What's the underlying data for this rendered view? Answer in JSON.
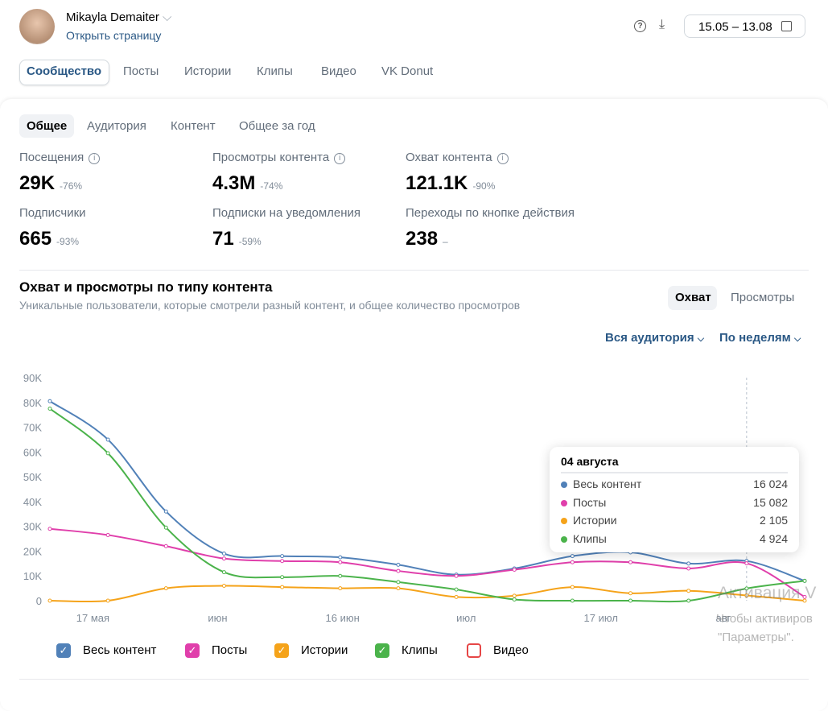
{
  "header": {
    "name": "Mikayla Demaiter",
    "link": "Открыть страницу",
    "date_range": "15.05 – 13.08"
  },
  "tabs": [
    "Сообщество",
    "Посты",
    "Истории",
    "Клипы",
    "Видео",
    "VK Donut"
  ],
  "subtabs": [
    "Общее",
    "Аудитория",
    "Контент",
    "Общее за год"
  ],
  "stats": [
    {
      "label": "Посещения",
      "value": "29K",
      "change": "-76%"
    },
    {
      "label": "Просмотры контента",
      "value": "4.3M",
      "change": "-74%"
    },
    {
      "label": "Охват контента",
      "value": "121.1K",
      "change": "-90%"
    },
    {
      "label": "Подписчики",
      "value": "665",
      "change": "-93%"
    },
    {
      "label": "Подписки на уведомления",
      "value": "71",
      "change": "-59%"
    },
    {
      "label": "Переходы по кнопке действия",
      "value": "238",
      "change": "–"
    }
  ],
  "section": {
    "title": "Охват и просмотры по типу контента",
    "subtitle": "Уникальные пользователи, которые смотрели разный контент, и общее количество просмотров",
    "toggles": [
      "Охват",
      "Просмотры"
    ],
    "filters": [
      "Вся аудитория",
      "По неделям"
    ]
  },
  "chart_data": {
    "type": "line",
    "x": [
      0,
      1,
      2,
      3,
      4,
      5,
      6,
      7,
      8,
      9,
      10,
      11,
      12,
      13
    ],
    "xlim": [
      0,
      13
    ],
    "xticks": [
      {
        "value": 0.74,
        "label": "17 мая"
      },
      {
        "value": 2.89,
        "label": "июн"
      },
      {
        "value": 5.04,
        "label": "16 июн"
      },
      {
        "value": 7.17,
        "label": "июл"
      },
      {
        "value": 9.49,
        "label": "17 июл"
      },
      {
        "value": 11.6,
        "label": "авг"
      }
    ],
    "ylim": [
      0,
      90000
    ],
    "yticks": [
      0,
      {
        "value": 10000,
        "label": "10K"
      },
      {
        "value": 20000,
        "label": "20K"
      },
      {
        "value": 30000,
        "label": "30K"
      },
      {
        "value": 40000,
        "label": "40K"
      },
      {
        "value": 50000,
        "label": "50K"
      },
      {
        "value": 60000,
        "label": "60K"
      },
      {
        "value": 70000,
        "label": "70K"
      },
      {
        "value": 80000,
        "label": "80K"
      },
      {
        "value": 90000,
        "label": "90K"
      }
    ],
    "series": [
      {
        "name": "Весь контент",
        "color": "#5181b8",
        "visible": true,
        "values": [
          80500,
          65000,
          36000,
          19000,
          18000,
          17500,
          14500,
          10500,
          13000,
          18000,
          19500,
          15000,
          16024,
          8000
        ]
      },
      {
        "name": "Посты",
        "color": "#e03fab",
        "visible": true,
        "values": [
          29000,
          26500,
          22000,
          17000,
          16000,
          15500,
          12000,
          10000,
          12500,
          15500,
          15500,
          13000,
          15082,
          1500
        ]
      },
      {
        "name": "Истории",
        "color": "#f5a31a",
        "visible": true,
        "values": [
          0,
          0,
          5000,
          6000,
          5500,
          5000,
          5000,
          1500,
          2000,
          5500,
          3000,
          4000,
          2105,
          0
        ]
      },
      {
        "name": "Клипы",
        "color": "#4bb34b",
        "visible": true,
        "values": [
          77500,
          59500,
          29500,
          11500,
          9500,
          10000,
          7500,
          4500,
          500,
          0,
          0,
          0,
          4924,
          8000
        ]
      },
      {
        "name": "Видео",
        "color": "#e64646",
        "visible": false,
        "values": [
          null,
          null,
          null,
          null,
          null,
          null,
          null,
          null,
          null,
          null,
          null,
          null,
          null,
          null
        ]
      }
    ],
    "tooltip": {
      "title": "04 августа",
      "value_labels": [
        "16 024",
        "15 082",
        "2 105",
        "4 924"
      ]
    }
  },
  "watermark": {
    "title": "Активация V",
    "lines": [
      "Чтобы активиров",
      "\"Параметры\"."
    ]
  }
}
